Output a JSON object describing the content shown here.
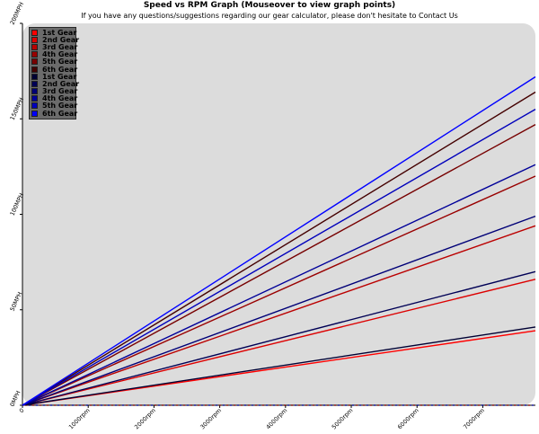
{
  "page": {
    "title": "Speed vs RPM Graph (Mouseover to view graph points)",
    "subtitle": "If you have any questions/suggestions regarding our gear calculator, please don't hesitate to Contact Us"
  },
  "chart_data": {
    "type": "line",
    "title": "Speed vs RPM Graph (Mouseover to view graph points)",
    "xlabel": "",
    "ylabel": "",
    "xlim": [
      0,
      7800
    ],
    "ylim": [
      0,
      200
    ],
    "x_ticks": [
      "0",
      "1000rpm",
      "2000rpm",
      "3000rpm",
      "4000rpm",
      "5000rpm",
      "6000rpm",
      "7000rpm"
    ],
    "y_ticks": [
      "0MPH",
      "50MPH",
      "100MPH",
      "150MPH",
      "200MPH"
    ],
    "grid": false,
    "background": "#dcdcdc",
    "legend_position": "top-left",
    "x": [
      0,
      7800
    ],
    "series": [
      {
        "name": "1st Gear",
        "color": "#ff0000",
        "values": [
          0,
          39
        ]
      },
      {
        "name": "2nd Gear",
        "color": "#dd0000",
        "values": [
          0,
          66
        ]
      },
      {
        "name": "3rd Gear",
        "color": "#bb0000",
        "values": [
          0,
          94
        ]
      },
      {
        "name": "4th Gear",
        "color": "#990000",
        "values": [
          0,
          120
        ]
      },
      {
        "name": "5th Gear",
        "color": "#770000",
        "values": [
          0,
          147
        ]
      },
      {
        "name": "6th Gear",
        "color": "#440000",
        "values": [
          0,
          164
        ]
      },
      {
        "name": "1st Gear",
        "color": "#000033",
        "values": [
          0,
          41
        ]
      },
      {
        "name": "2nd Gear",
        "color": "#000055",
        "values": [
          0,
          70
        ]
      },
      {
        "name": "3rd Gear",
        "color": "#000077",
        "values": [
          0,
          99
        ]
      },
      {
        "name": "4th Gear",
        "color": "#000099",
        "values": [
          0,
          126
        ]
      },
      {
        "name": "5th Gear",
        "color": "#0000bb",
        "values": [
          0,
          155
        ]
      },
      {
        "name": "6th Gear",
        "color": "#0000ff",
        "values": [
          0,
          172
        ]
      }
    ]
  }
}
